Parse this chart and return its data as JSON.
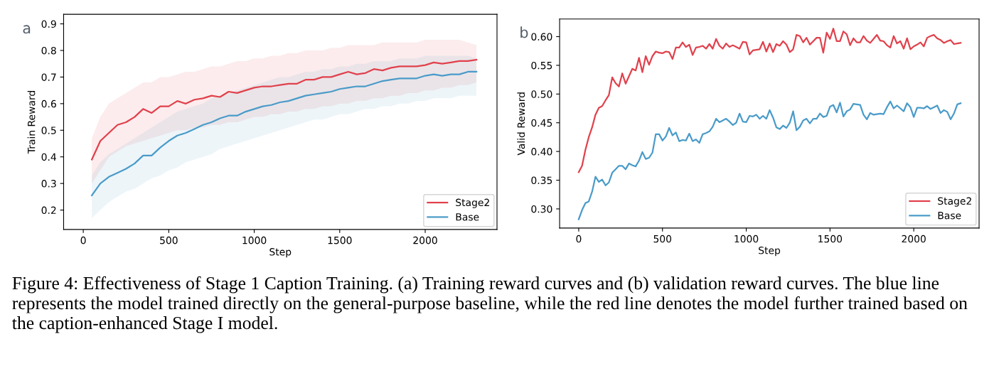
{
  "chart_data": [
    {
      "type": "line",
      "title": "a",
      "xlabel": "Step",
      "ylabel": "Train Reward",
      "xlim": [
        -115,
        2420
      ],
      "ylim": [
        0.127,
        0.936
      ],
      "xticks": [
        0,
        500,
        1000,
        1500,
        2000
      ],
      "yticks": [
        0.2,
        0.3,
        0.4,
        0.5,
        0.6,
        0.7,
        0.8,
        0.9
      ],
      "grid": false,
      "legend": "bottom right",
      "x": [
        50,
        100,
        150,
        200,
        250,
        300,
        350,
        400,
        450,
        500,
        550,
        600,
        650,
        700,
        750,
        800,
        850,
        900,
        950,
        1000,
        1050,
        1100,
        1150,
        1200,
        1250,
        1300,
        1350,
        1400,
        1450,
        1500,
        1550,
        1600,
        1650,
        1700,
        1750,
        1800,
        1850,
        1900,
        1950,
        2000,
        2050,
        2100,
        2150,
        2200,
        2250,
        2300
      ],
      "series": [
        {
          "name": "Stage2",
          "color": "#e0414c",
          "values": [
            0.39,
            0.46,
            0.49,
            0.52,
            0.53,
            0.55,
            0.58,
            0.565,
            0.59,
            0.59,
            0.61,
            0.6,
            0.615,
            0.62,
            0.63,
            0.625,
            0.645,
            0.64,
            0.65,
            0.66,
            0.665,
            0.665,
            0.67,
            0.675,
            0.675,
            0.69,
            0.69,
            0.7,
            0.7,
            0.71,
            0.72,
            0.71,
            0.715,
            0.73,
            0.725,
            0.735,
            0.74,
            0.74,
            0.74,
            0.745,
            0.755,
            0.75,
            0.755,
            0.76,
            0.76,
            0.765
          ],
          "lower": [
            0.3,
            0.35,
            0.4,
            0.42,
            0.44,
            0.45,
            0.46,
            0.47,
            0.48,
            0.49,
            0.5,
            0.5,
            0.51,
            0.51,
            0.52,
            0.52,
            0.53,
            0.53,
            0.54,
            0.55,
            0.55,
            0.56,
            0.56,
            0.57,
            0.57,
            0.58,
            0.58,
            0.59,
            0.59,
            0.6,
            0.6,
            0.61,
            0.61,
            0.62,
            0.62,
            0.63,
            0.63,
            0.64,
            0.64,
            0.65,
            0.65,
            0.66,
            0.66,
            0.67,
            0.67,
            0.68
          ],
          "upper": [
            0.47,
            0.55,
            0.6,
            0.62,
            0.64,
            0.66,
            0.68,
            0.68,
            0.7,
            0.7,
            0.71,
            0.72,
            0.72,
            0.73,
            0.74,
            0.74,
            0.75,
            0.76,
            0.76,
            0.77,
            0.77,
            0.78,
            0.78,
            0.79,
            0.79,
            0.8,
            0.8,
            0.8,
            0.81,
            0.81,
            0.82,
            0.82,
            0.82,
            0.82,
            0.83,
            0.83,
            0.83,
            0.83,
            0.83,
            0.84,
            0.84,
            0.84,
            0.84,
            0.84,
            0.83,
            0.82
          ]
        },
        {
          "name": "Base",
          "color": "#4a9bc9",
          "values": [
            0.255,
            0.3,
            0.325,
            0.34,
            0.355,
            0.375,
            0.405,
            0.405,
            0.435,
            0.46,
            0.48,
            0.49,
            0.505,
            0.52,
            0.53,
            0.545,
            0.555,
            0.555,
            0.57,
            0.58,
            0.59,
            0.595,
            0.605,
            0.61,
            0.62,
            0.63,
            0.635,
            0.64,
            0.645,
            0.655,
            0.66,
            0.665,
            0.665,
            0.675,
            0.685,
            0.69,
            0.695,
            0.695,
            0.695,
            0.705,
            0.71,
            0.705,
            0.71,
            0.71,
            0.72,
            0.72
          ],
          "lower": [
            0.17,
            0.2,
            0.23,
            0.25,
            0.27,
            0.28,
            0.3,
            0.32,
            0.33,
            0.35,
            0.36,
            0.38,
            0.39,
            0.4,
            0.41,
            0.43,
            0.44,
            0.45,
            0.46,
            0.47,
            0.48,
            0.49,
            0.5,
            0.51,
            0.52,
            0.53,
            0.54,
            0.54,
            0.55,
            0.56,
            0.56,
            0.57,
            0.58,
            0.58,
            0.59,
            0.59,
            0.6,
            0.6,
            0.61,
            0.61,
            0.62,
            0.62,
            0.62,
            0.63,
            0.63,
            0.63
          ],
          "upper": [
            0.33,
            0.38,
            0.41,
            0.43,
            0.45,
            0.47,
            0.49,
            0.51,
            0.53,
            0.55,
            0.57,
            0.58,
            0.59,
            0.6,
            0.62,
            0.63,
            0.64,
            0.65,
            0.66,
            0.67,
            0.68,
            0.69,
            0.7,
            0.7,
            0.71,
            0.72,
            0.72,
            0.73,
            0.73,
            0.74,
            0.74,
            0.75,
            0.75,
            0.76,
            0.76,
            0.76,
            0.77,
            0.77,
            0.77,
            0.78,
            0.78,
            0.78,
            0.78,
            0.78,
            0.78,
            0.77
          ]
        }
      ],
      "annotations": [
        "Figure 4: Effectiveness of Stage 1 Caption Training. (a) Training reward curves and (b) validation reward curves. The blue line represents the model trained directly on the general-purpose baseline, while the red line denotes the model further trained based on the caption-enhanced Stage I model."
      ]
    },
    {
      "type": "line",
      "title": "b",
      "xlabel": "Step",
      "ylabel": "Valid Reward",
      "xlim": [
        -114,
        2390
      ],
      "ylim": [
        0.2667,
        0.6306
      ],
      "xticks": [
        0,
        500,
        1000,
        1500,
        2000
      ],
      "yticks": [
        {
          "value": 0.3,
          "label": "0.30"
        },
        {
          "value": 0.35,
          "label": "0.35"
        },
        {
          "value": 0.4,
          "label": "0.40"
        },
        {
          "value": 0.45,
          "label": "0.45"
        },
        {
          "value": 0.5,
          "label": "0.50"
        },
        {
          "value": 0.55,
          "label": "0.55"
        },
        {
          "value": 0.6,
          "label": "0.60"
        }
      ],
      "grid": false,
      "legend": "bottom right",
      "x": [
        0,
        20,
        40,
        60,
        80,
        100,
        120,
        140,
        160,
        180,
        200,
        220,
        240,
        260,
        280,
        300,
        320,
        340,
        360,
        380,
        400,
        420,
        440,
        460,
        480,
        500,
        520,
        540,
        560,
        580,
        600,
        620,
        640,
        660,
        680,
        700,
        720,
        740,
        760,
        780,
        800,
        820,
        840,
        860,
        880,
        900,
        920,
        940,
        960,
        980,
        1000,
        1020,
        1040,
        1060,
        1080,
        1100,
        1120,
        1140,
        1160,
        1180,
        1200,
        1220,
        1240,
        1260,
        1280,
        1300,
        1320,
        1340,
        1360,
        1380,
        1400,
        1420,
        1440,
        1460,
        1480,
        1500,
        1520,
        1540,
        1560,
        1580,
        1600,
        1620,
        1640,
        1660,
        1680,
        1700,
        1720,
        1740,
        1760,
        1780,
        1800,
        1820,
        1840,
        1860,
        1880,
        1900,
        1920,
        1940,
        1960,
        1980,
        2000,
        2020,
        2040,
        2060,
        2080,
        2100,
        2120,
        2140,
        2160,
        2180,
        2200,
        2220,
        2240,
        2260,
        2280
      ],
      "series": [
        {
          "name": "Stage2",
          "color": "#e0414c",
          "values": [
            0.364,
            0.375,
            0.403,
            0.425,
            0.442,
            0.464,
            0.476,
            0.479,
            0.489,
            0.498,
            0.529,
            0.519,
            0.513,
            0.536,
            0.518,
            0.531,
            0.544,
            0.541,
            0.563,
            0.538,
            0.566,
            0.551,
            0.566,
            0.574,
            0.572,
            0.571,
            0.574,
            0.573,
            0.561,
            0.581,
            0.581,
            0.59,
            0.582,
            0.586,
            0.568,
            0.581,
            0.582,
            0.584,
            0.579,
            0.587,
            0.579,
            0.596,
            0.584,
            0.579,
            0.588,
            0.582,
            0.585,
            0.582,
            0.579,
            0.591,
            0.59,
            0.569,
            0.576,
            0.577,
            0.578,
            0.591,
            0.574,
            0.588,
            0.573,
            0.587,
            0.584,
            0.592,
            0.586,
            0.573,
            0.578,
            0.603,
            0.601,
            0.59,
            0.598,
            0.586,
            0.592,
            0.598,
            0.598,
            0.572,
            0.607,
            0.596,
            0.614,
            0.592,
            0.592,
            0.609,
            0.604,
            0.585,
            0.597,
            0.59,
            0.59,
            0.601,
            0.593,
            0.589,
            0.596,
            0.603,
            0.593,
            0.592,
            0.585,
            0.581,
            0.601,
            0.588,
            0.592,
            0.579,
            0.597,
            0.578,
            0.583,
            0.586,
            0.59,
            0.583,
            0.598,
            0.601,
            0.603,
            0.597,
            0.594,
            0.589,
            0.592,
            0.594,
            0.587,
            0.588,
            0.589
          ]
        },
        {
          "name": "Base",
          "color": "#4a9bc9",
          "values": [
            0.282,
            0.298,
            0.31,
            0.313,
            0.33,
            0.356,
            0.347,
            0.351,
            0.341,
            0.346,
            0.363,
            0.369,
            0.375,
            0.375,
            0.369,
            0.379,
            0.376,
            0.374,
            0.384,
            0.399,
            0.387,
            0.389,
            0.398,
            0.43,
            0.43,
            0.419,
            0.426,
            0.441,
            0.428,
            0.433,
            0.418,
            0.42,
            0.419,
            0.431,
            0.418,
            0.421,
            0.415,
            0.43,
            0.432,
            0.435,
            0.443,
            0.457,
            0.451,
            0.454,
            0.457,
            0.452,
            0.446,
            0.45,
            0.466,
            0.452,
            0.451,
            0.462,
            0.461,
            0.464,
            0.457,
            0.462,
            0.457,
            0.472,
            0.459,
            0.442,
            0.439,
            0.445,
            0.441,
            0.45,
            0.47,
            0.437,
            0.443,
            0.454,
            0.457,
            0.449,
            0.457,
            0.457,
            0.466,
            0.46,
            0.462,
            0.478,
            0.481,
            0.468,
            0.485,
            0.461,
            0.47,
            0.473,
            0.483,
            0.482,
            0.481,
            0.464,
            0.456,
            0.467,
            0.464,
            0.465,
            0.466,
            0.465,
            0.477,
            0.487,
            0.475,
            0.48,
            0.475,
            0.47,
            0.484,
            0.477,
            0.46,
            0.476,
            0.476,
            0.475,
            0.479,
            0.474,
            0.477,
            0.48,
            0.467,
            0.472,
            0.469,
            0.456,
            0.466,
            0.482,
            0.484
          ]
        }
      ]
    }
  ]
}
